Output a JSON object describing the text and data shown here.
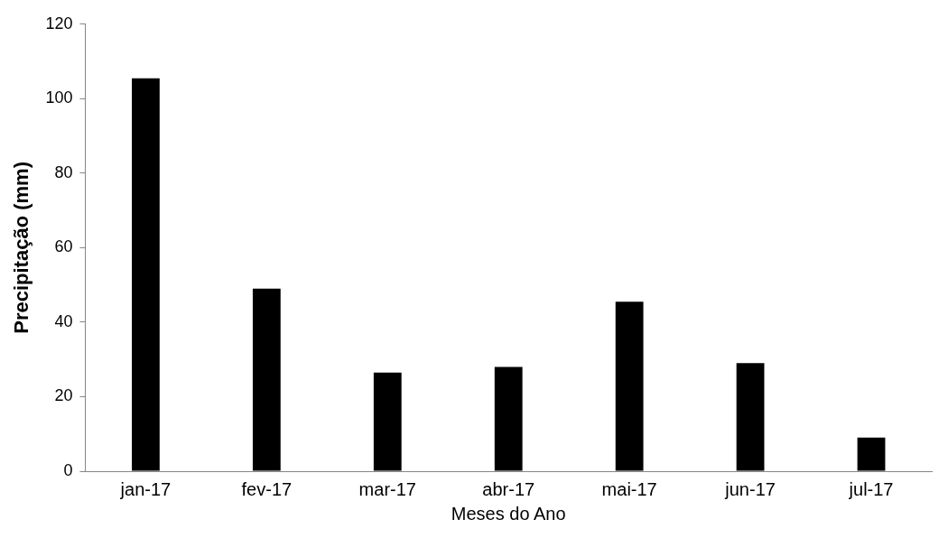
{
  "chart_data": {
    "type": "bar",
    "xlabel": "Meses do Ano",
    "ylabel": "Precipitação (mm)",
    "categories": [
      "jan-17",
      "fev-17",
      "mar-17",
      "abr-17",
      "mai-17",
      "jun-17",
      "jul-17"
    ],
    "values": [
      105.5,
      49,
      26.5,
      28,
      45.5,
      29,
      9
    ],
    "color": "#000000",
    "ylim": [
      0,
      120
    ],
    "yticks": [
      0,
      20,
      40,
      60,
      80,
      100,
      120
    ],
    "grid": false,
    "legend": false
  }
}
